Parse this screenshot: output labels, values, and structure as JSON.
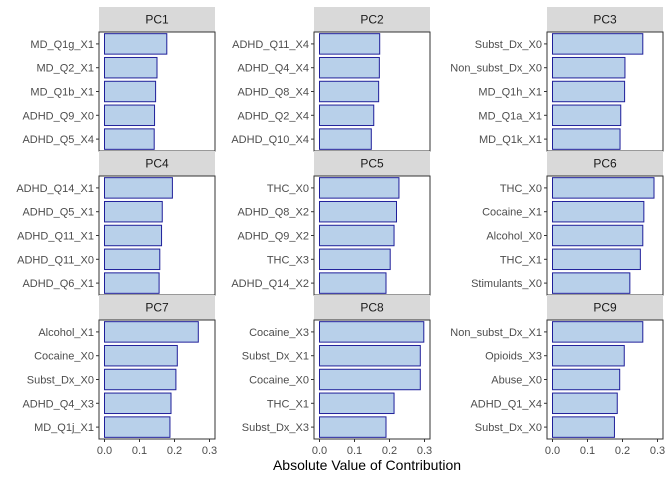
{
  "chart_data": {
    "type": "bar",
    "orientation": "horizontal",
    "xlabel": "Absolute Value of Contribution",
    "xlim": [
      0,
      0.3
    ],
    "xticks": [
      0.0,
      0.1,
      0.2,
      0.3
    ],
    "xtick_labels": [
      "0.0",
      "0.1",
      "0.2",
      "0.3"
    ],
    "grid": false,
    "legend": "none",
    "colors": {
      "bar_fill": "#b8d0ea",
      "bar_stroke": "#1f1f9a",
      "strip_fill": "#d9d9d9"
    },
    "panels": [
      {
        "title": "PC1",
        "categories": [
          "MD_Q1g_X1",
          "MD_Q2_X1",
          "MD_Q1b_X1",
          "ADHD_Q9_X0",
          "ADHD_Q5_X4"
        ],
        "values": [
          0.178,
          0.15,
          0.146,
          0.143,
          0.142
        ]
      },
      {
        "title": "PC2",
        "categories": [
          "ADHD_Q11_X4",
          "ADHD_Q4_X4",
          "ADHD_Q8_X4",
          "ADHD_Q2_X4",
          "ADHD_Q10_X4"
        ],
        "values": [
          0.172,
          0.171,
          0.169,
          0.155,
          0.148
        ]
      },
      {
        "title": "PC3",
        "categories": [
          "Subst_Dx_X0",
          "Non_subst_Dx_X0",
          "MD_Q1h_X1",
          "MD_Q1a_X1",
          "MD_Q1k_X1"
        ],
        "values": [
          0.258,
          0.207,
          0.206,
          0.195,
          0.193
        ]
      },
      {
        "title": "PC4",
        "categories": [
          "ADHD_Q14_X1",
          "ADHD_Q5_X1",
          "ADHD_Q11_X1",
          "ADHD_Q11_X0",
          "ADHD_Q6_X1"
        ],
        "values": [
          0.194,
          0.165,
          0.163,
          0.158,
          0.156
        ]
      },
      {
        "title": "PC5",
        "categories": [
          "THC_X0",
          "ADHD_Q8_X2",
          "ADHD_Q9_X2",
          "THC_X3",
          "ADHD_Q14_X2"
        ],
        "values": [
          0.227,
          0.22,
          0.213,
          0.202,
          0.19
        ]
      },
      {
        "title": "PC6",
        "categories": [
          "THC_X0",
          "Cocaine_X1",
          "Alcohol_X0",
          "THC_X1",
          "Stimulants_X0"
        ],
        "values": [
          0.29,
          0.261,
          0.258,
          0.251,
          0.221
        ]
      },
      {
        "title": "PC7",
        "categories": [
          "Alcohol_X1",
          "Cocaine_X0",
          "Subst_Dx_X0",
          "ADHD_Q4_X3",
          "MD_Q1j_X1"
        ],
        "values": [
          0.268,
          0.208,
          0.204,
          0.19,
          0.187
        ]
      },
      {
        "title": "PC8",
        "categories": [
          "Cocaine_X3",
          "Subst_Dx_X1",
          "Cocaine_X0",
          "THC_X1",
          "Subst_Dx_X3"
        ],
        "values": [
          0.298,
          0.288,
          0.288,
          0.213,
          0.19
        ]
      },
      {
        "title": "PC9",
        "categories": [
          "Non_subst_Dx_X1",
          "Opioids_X3",
          "Abuse_X0",
          "ADHD_Q1_X4",
          "Subst_Dx_X0"
        ],
        "values": [
          0.258,
          0.205,
          0.192,
          0.185,
          0.177
        ]
      }
    ]
  }
}
